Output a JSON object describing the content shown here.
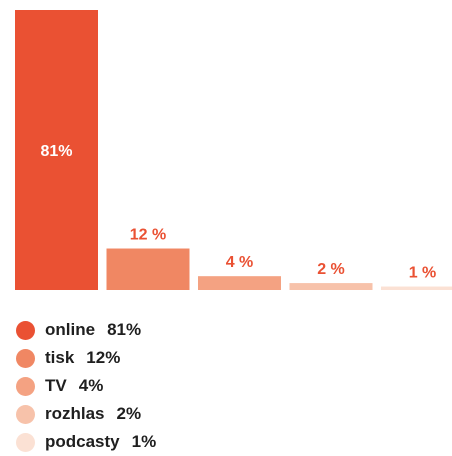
{
  "chart_data": {
    "type": "bar",
    "title": "",
    "xlabel": "",
    "ylabel": "",
    "ylim": [
      0,
      81
    ],
    "categories": [
      "online",
      "tisk",
      "TV",
      "rozhlas",
      "podcasty"
    ],
    "values": [
      81,
      12,
      4,
      2,
      1
    ],
    "bar_labels": [
      "81%",
      "12 %",
      "4 %",
      "2 %",
      "1 %"
    ],
    "colors": [
      "#ea5133",
      "#f08763",
      "#f4a282",
      "#f7c2aa",
      "#fbe1d4"
    ],
    "label_color": "#ea5133",
    "inside_label_color": "#ffffff",
    "legend": [
      {
        "label": "online",
        "value": "81%"
      },
      {
        "label": "tisk",
        "value": "12%"
      },
      {
        "label": "TV",
        "value": "4%"
      },
      {
        "label": "rozhlas",
        "value": "2%"
      },
      {
        "label": "podcasty",
        "value": "1%"
      }
    ]
  }
}
